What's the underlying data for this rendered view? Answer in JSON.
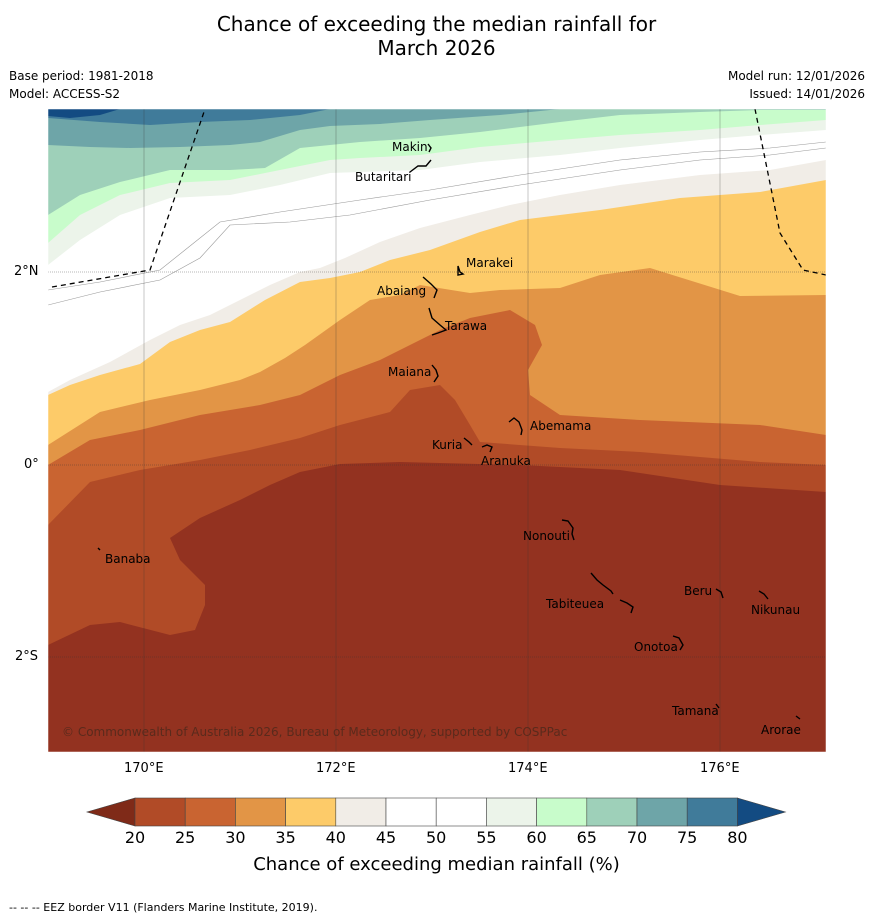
{
  "title": {
    "line1": "Chance of exceeding the median rainfall for",
    "line2": "March 2026"
  },
  "info": {
    "base_period": "Base period: 1981-2018",
    "model": "Model: ACCESS-S2",
    "model_run": "Model run: 12/01/2026",
    "issued": "Issued: 14/01/2026"
  },
  "map": {
    "lat_labels": [
      "2°N",
      "0°",
      "2°S"
    ],
    "lon_labels": [
      "170°E",
      "172°E",
      "174°E",
      "176°E"
    ],
    "places": [
      "Makin",
      "Butaritari",
      "Marakei",
      "Abaiang",
      "Tarawa",
      "Maiana",
      "Abemama",
      "Kuria",
      "Aranuka",
      "Banaba",
      "Nonouti",
      "Beru",
      "Nikunau",
      "Tabiteuea",
      "Onotoa",
      "Tamana",
      "Arorae"
    ],
    "copyright": "© Commonwealth of Australia 2026, Bureau of Meteorology, supported by COSPPac"
  },
  "colorbar": {
    "ticks": [
      "20",
      "25",
      "30",
      "35",
      "40",
      "45",
      "50",
      "55",
      "60",
      "65",
      "70",
      "75",
      "80"
    ],
    "colors": [
      "#7f2a18",
      "#b14b27",
      "#c96431",
      "#e29546",
      "#fdcb69",
      "#f1ede7",
      "#ffffff",
      "#ffffff",
      "#ecf4ea",
      "#c8fccb",
      "#9ed0b9",
      "#6ea5a8",
      "#407b9a",
      "#134b82"
    ],
    "label": "Chance of exceeding median rainfall (%)"
  },
  "footer": "-- -- -- EEZ border V11 (Flanders Marine Institute, 2019)."
}
